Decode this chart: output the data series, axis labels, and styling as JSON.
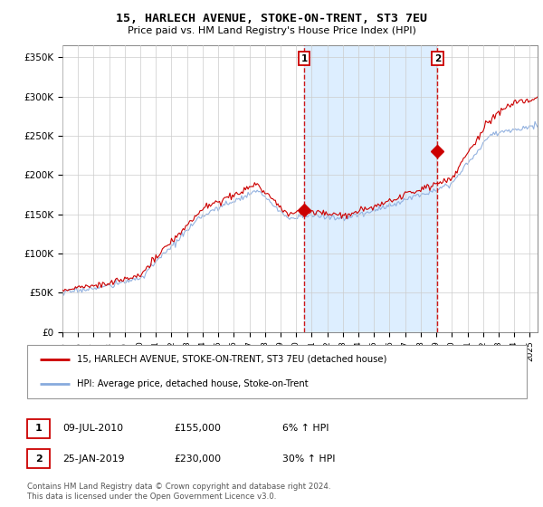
{
  "title": "15, HARLECH AVENUE, STOKE-ON-TRENT, ST3 7EU",
  "subtitle": "Price paid vs. HM Land Registry's House Price Index (HPI)",
  "ylabel_ticks": [
    "£0",
    "£50K",
    "£100K",
    "£150K",
    "£200K",
    "£250K",
    "£300K",
    "£350K"
  ],
  "ytick_values": [
    0,
    50000,
    100000,
    150000,
    200000,
    250000,
    300000,
    350000
  ],
  "ylim": [
    0,
    365000
  ],
  "xlim_start": 1995.0,
  "xlim_end": 2025.5,
  "sale1_x": 2010.52,
  "sale1_y": 155000,
  "sale1_label": "1",
  "sale2_x": 2019.07,
  "sale2_y": 230000,
  "sale2_label": "2",
  "red_color": "#cc0000",
  "blue_color": "#88aadd",
  "shade_color": "#ddeeff",
  "dashed_line_color": "#cc0000",
  "grid_color": "#cccccc",
  "plot_bg_color": "#ffffff",
  "legend_label_red": "15, HARLECH AVENUE, STOKE-ON-TRENT, ST3 7EU (detached house)",
  "legend_label_blue": "HPI: Average price, detached house, Stoke-on-Trent",
  "table_row1": [
    "1",
    "09-JUL-2010",
    "£155,000",
    "6% ↑ HPI"
  ],
  "table_row2": [
    "2",
    "25-JAN-2019",
    "£230,000",
    "30% ↑ HPI"
  ],
  "footnote1": "Contains HM Land Registry data © Crown copyright and database right 2024.",
  "footnote2": "This data is licensed under the Open Government Licence v3.0."
}
